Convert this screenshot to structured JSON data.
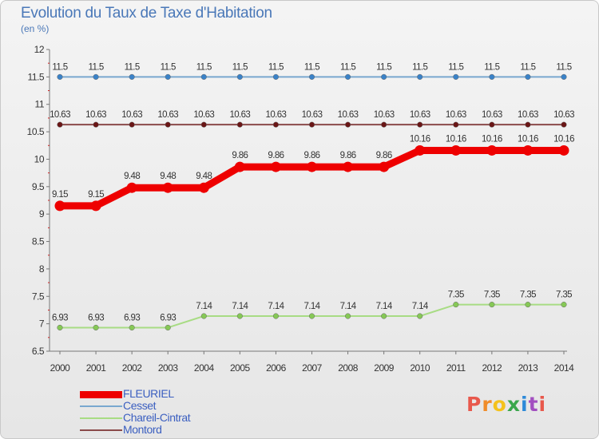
{
  "header": {
    "title": "Evolution du Taux de Taxe d'Habitation",
    "subtitle": "(en %)"
  },
  "logo": {
    "text": "Proxiti",
    "colors": [
      "#e8584c",
      "#f08c2a",
      "#f4c21c",
      "#3aa64c",
      "#2d8ad8",
      "#a24fc0",
      "#e8584c"
    ]
  },
  "chart_data": {
    "type": "line",
    "title": "Evolution du Taux de Taxe d'Habitation",
    "subtitle": "(en %)",
    "xlabel": "",
    "ylabel": "",
    "ylim": [
      6.5,
      12
    ],
    "y_ticks": [
      6.5,
      7,
      7.5,
      8,
      8.5,
      9,
      9.5,
      10,
      10.5,
      11,
      11.5,
      12
    ],
    "grid": false,
    "legend": "bottom-left",
    "x": [
      2000,
      2001,
      2002,
      2003,
      2004,
      2005,
      2006,
      2007,
      2008,
      2009,
      2010,
      2011,
      2012,
      2013,
      2014
    ],
    "series": [
      {
        "name": "FLEURIEL",
        "color": "#ee0000",
        "values": [
          9.15,
          9.15,
          9.48,
          9.48,
          9.48,
          9.86,
          9.86,
          9.86,
          9.86,
          9.86,
          10.16,
          10.16,
          10.16,
          10.16,
          10.16
        ]
      },
      {
        "name": "Cesset",
        "color": "#79a8cf",
        "values": [
          11.5,
          11.5,
          11.5,
          11.5,
          11.5,
          11.5,
          11.5,
          11.5,
          11.5,
          11.5,
          11.5,
          11.5,
          11.5,
          11.5,
          11.5
        ]
      },
      {
        "name": "Chareil-Cintrat",
        "color": "#a8dc84",
        "values": [
          6.93,
          6.93,
          6.93,
          6.93,
          7.14,
          7.14,
          7.14,
          7.14,
          7.14,
          7.14,
          7.14,
          7.35,
          7.35,
          7.35,
          7.35
        ]
      },
      {
        "name": "Montord",
        "color": "#8a4a4a",
        "values": [
          10.63,
          10.63,
          10.63,
          10.63,
          10.63,
          10.63,
          10.63,
          10.63,
          10.63,
          10.63,
          10.63,
          10.63,
          10.63,
          10.63,
          10.63
        ]
      }
    ]
  }
}
